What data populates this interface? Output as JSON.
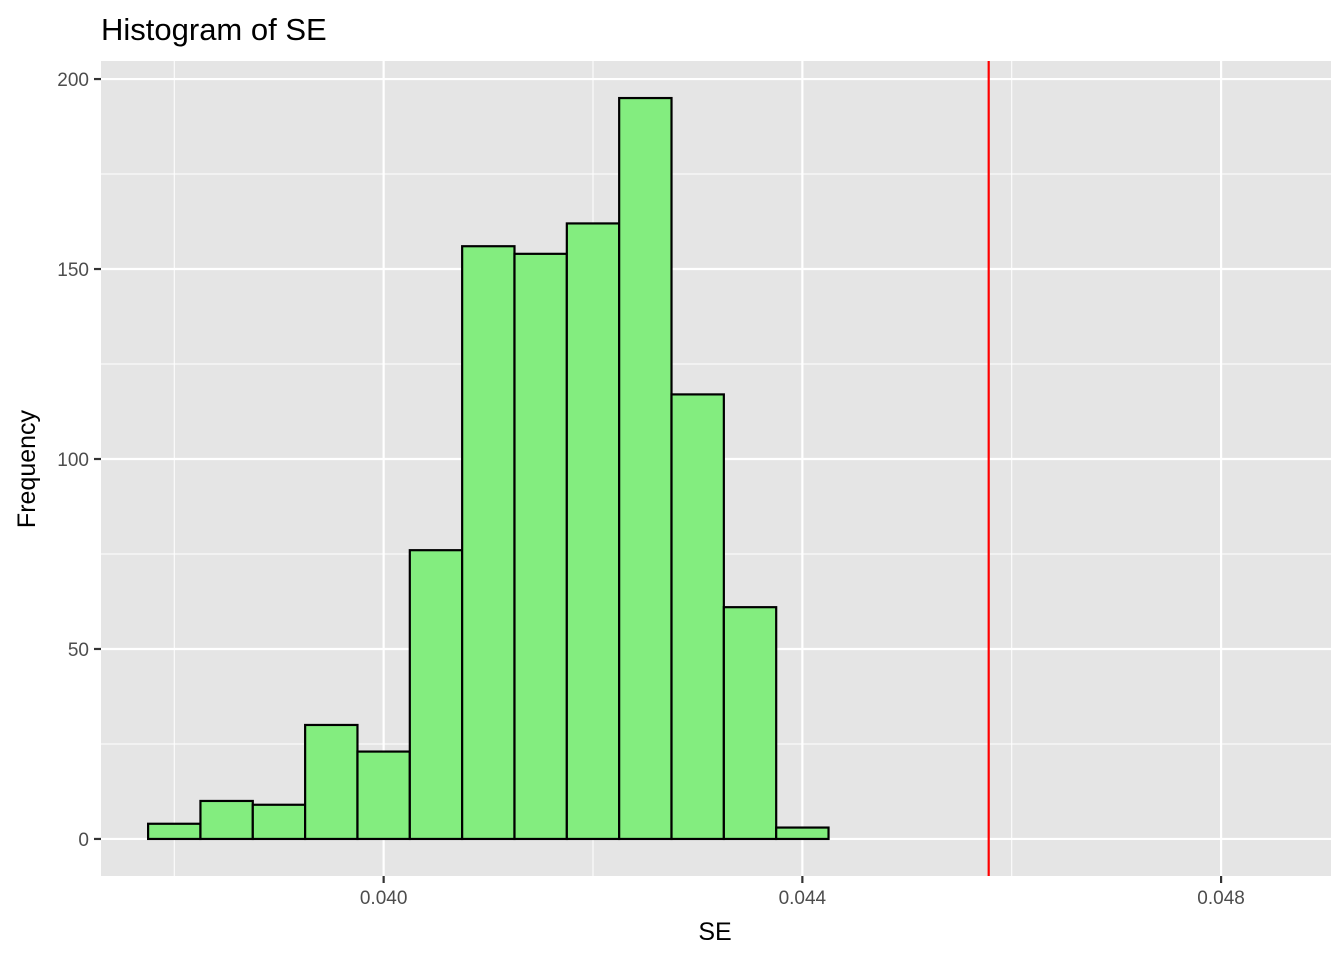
{
  "chart_data": {
    "type": "bar",
    "title": "Histogram of SE",
    "xlabel": "SE",
    "ylabel": "Frequency",
    "xlim": [
      0.0373,
      0.04905
    ],
    "ylim": [
      -9.75,
      204.75
    ],
    "x_ticks": [
      0.04,
      0.044,
      0.048
    ],
    "x_tick_labels": [
      "0.040",
      "0.044",
      "0.048"
    ],
    "y_ticks": [
      0,
      50,
      100,
      150,
      200
    ],
    "y_tick_labels": [
      "0",
      "50",
      "100",
      "150",
      "200"
    ],
    "bin_width": 0.0005,
    "bins": [
      {
        "x_min": 0.03775,
        "x_max": 0.03825,
        "count": 4
      },
      {
        "x_min": 0.03825,
        "x_max": 0.03875,
        "count": 10
      },
      {
        "x_min": 0.03875,
        "x_max": 0.03925,
        "count": 9
      },
      {
        "x_min": 0.03925,
        "x_max": 0.03975,
        "count": 30
      },
      {
        "x_min": 0.03975,
        "x_max": 0.04025,
        "count": 23
      },
      {
        "x_min": 0.04025,
        "x_max": 0.04075,
        "count": 76
      },
      {
        "x_min": 0.04075,
        "x_max": 0.04125,
        "count": 156
      },
      {
        "x_min": 0.04125,
        "x_max": 0.04175,
        "count": 154
      },
      {
        "x_min": 0.04175,
        "x_max": 0.04225,
        "count": 162
      },
      {
        "x_min": 0.04225,
        "x_max": 0.04275,
        "count": 195
      },
      {
        "x_min": 0.04275,
        "x_max": 0.04325,
        "count": 117
      },
      {
        "x_min": 0.04325,
        "x_max": 0.04375,
        "count": 61
      },
      {
        "x_min": 0.04375,
        "x_max": 0.04425,
        "count": 3
      }
    ],
    "reference_line": {
      "x": 0.04578
    },
    "grid": true,
    "legend": "none",
    "colors": {
      "bar_fill": "#83ED7F",
      "bar_stroke": "#000000",
      "panel_background": "#E5E5E5",
      "grid_major": "#FFFFFF",
      "reference_line": "#FF0000",
      "tick_label": "#4D4D4D"
    }
  }
}
